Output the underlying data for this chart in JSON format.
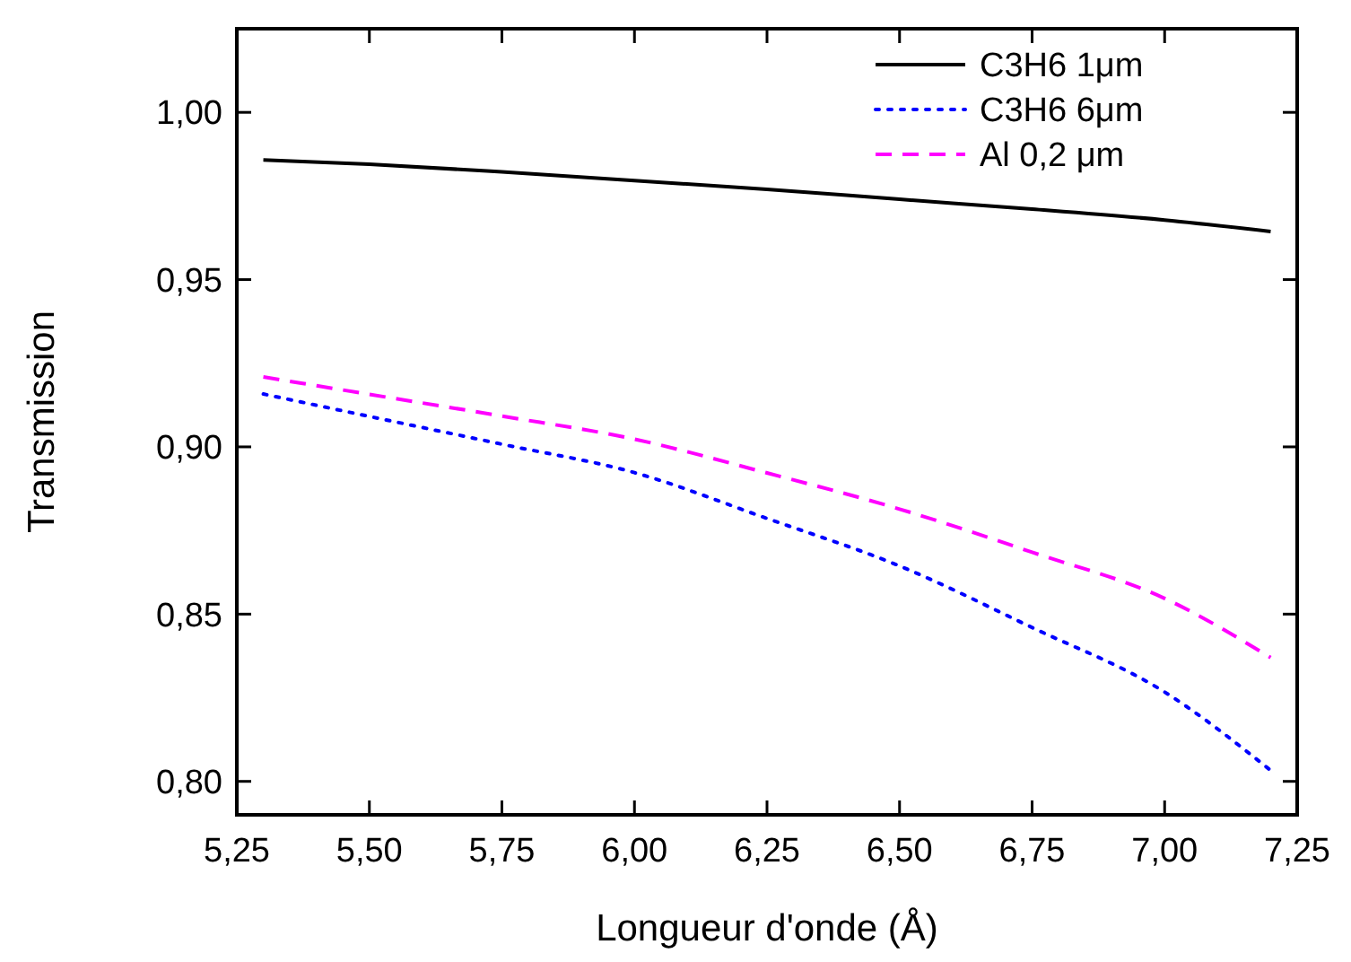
{
  "chart_data": {
    "type": "line",
    "xlabel": "Longueur d'onde (Å)",
    "ylabel": "Transmission",
    "xlim": [
      5.25,
      7.25
    ],
    "ylim": [
      0.79,
      1.025
    ],
    "xticks": [
      {
        "value": 5.25,
        "label": "5,25"
      },
      {
        "value": 5.5,
        "label": "5,50"
      },
      {
        "value": 5.75,
        "label": "5,75"
      },
      {
        "value": 6,
        "label": "6,00"
      },
      {
        "value": 6.25,
        "label": "6,25"
      },
      {
        "value": 6.5,
        "label": "6,50"
      },
      {
        "value": 6.75,
        "label": "6,75"
      },
      {
        "value": 7,
        "label": "7,00"
      },
      {
        "value": 7.25,
        "label": "7,25"
      }
    ],
    "yticks": [
      {
        "value": 0.8,
        "label": "0,80"
      },
      {
        "value": 0.85,
        "label": "0,85"
      },
      {
        "value": 0.9,
        "label": "0,90"
      },
      {
        "value": 0.95,
        "label": "0,95"
      },
      {
        "value": 1,
        "label": "1,00"
      }
    ],
    "x": [
      5.3,
      5.5,
      5.75,
      6,
      6.25,
      6.5,
      6.75,
      7,
      7.2
    ],
    "series": [
      {
        "name": "C3H6 1μm",
        "color": "#000000",
        "line_style": "solid",
        "values": [
          0.9858,
          0.9845,
          0.9822,
          0.9796,
          0.977,
          0.974,
          0.9711,
          0.9678,
          0.9644
        ]
      },
      {
        "name": "C3H6 6μm",
        "color": "#0000ff",
        "line_style": "dotted",
        "values": [
          0.9158,
          0.9091,
          0.9008,
          0.8923,
          0.8786,
          0.8644,
          0.846,
          0.8267,
          0.8033
        ]
      },
      {
        "name": "Al 0,2 μm",
        "color": "#ff00ff",
        "line_style": "dashed",
        "values": [
          0.9209,
          0.9157,
          0.9092,
          0.9023,
          0.8922,
          0.8814,
          0.8685,
          0.8547,
          0.837
        ]
      }
    ],
    "grid": false,
    "legend": "top right"
  }
}
